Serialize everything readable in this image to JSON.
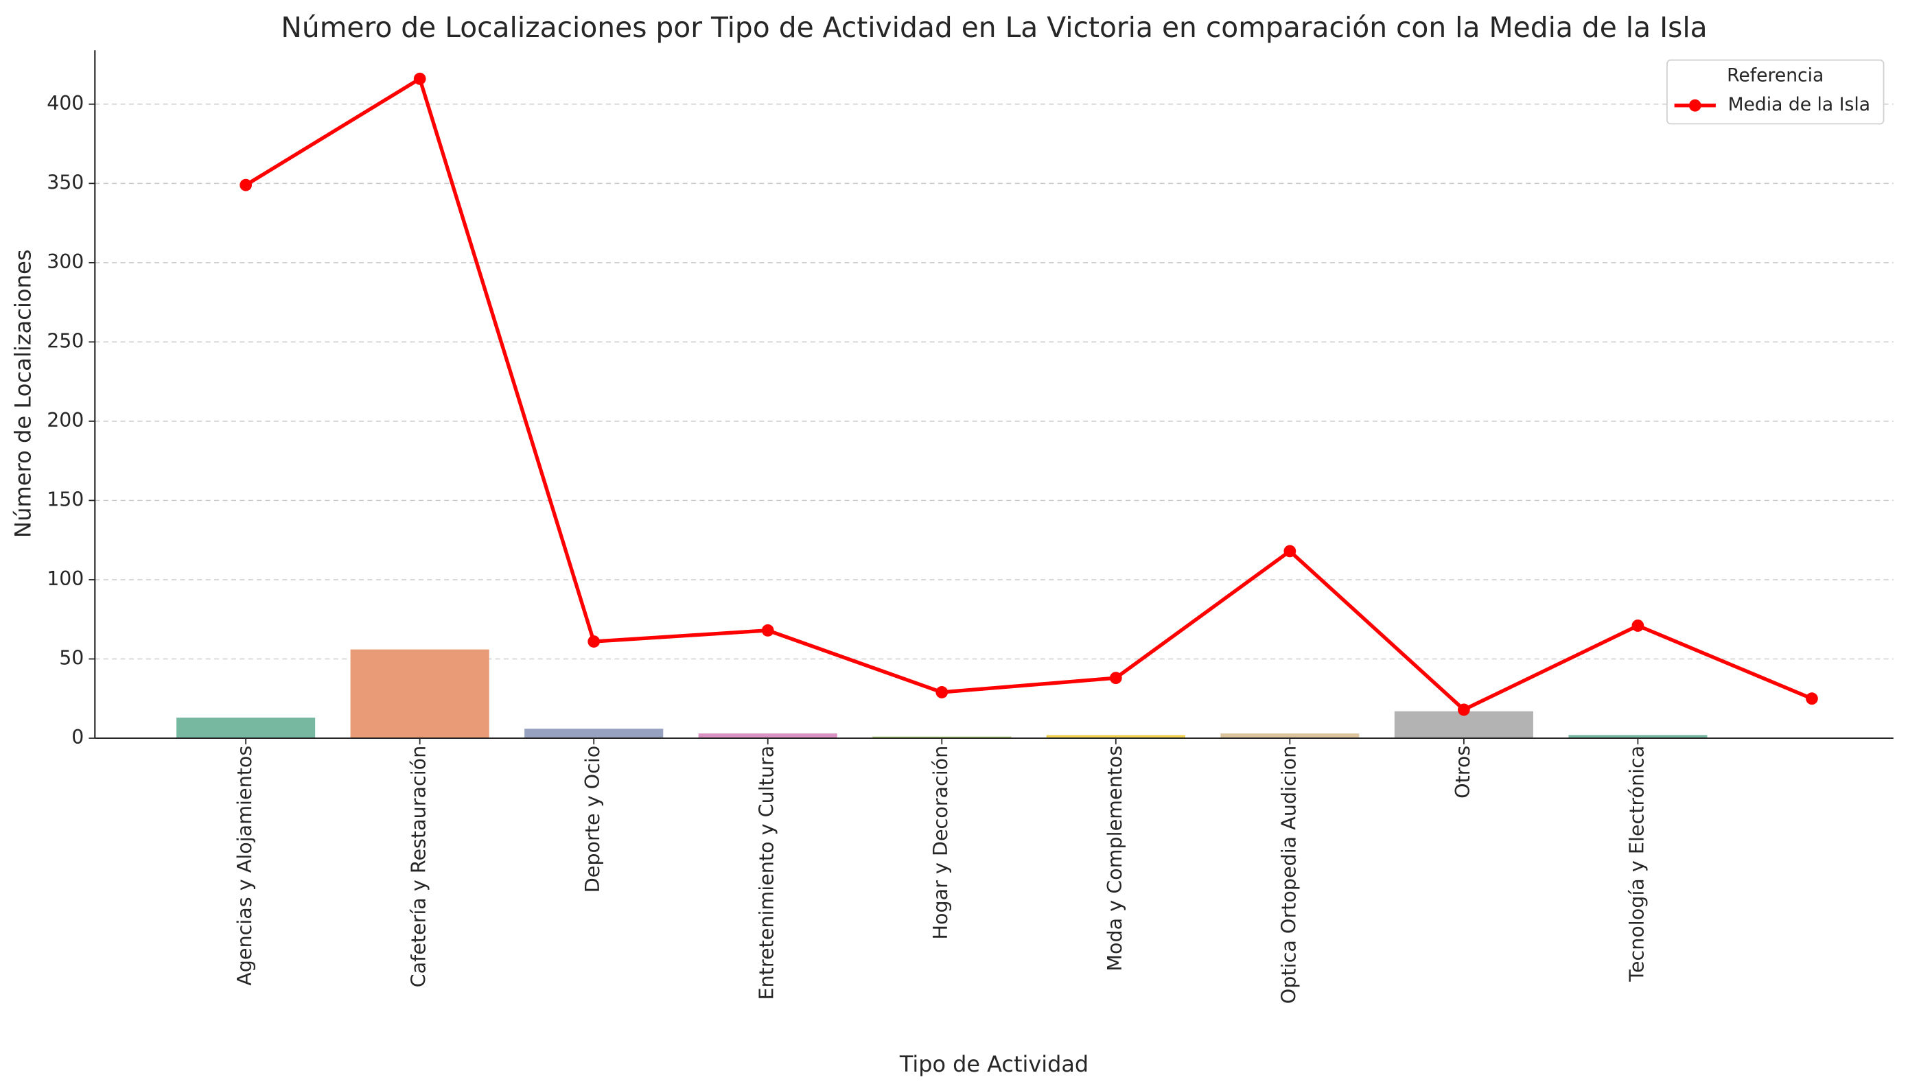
{
  "chart_data": {
    "type": "bar",
    "title": "Número de Localizaciones por Tipo de Actividad en La Victoria en comparación con la Media de la Isla",
    "x_label": "Tipo de Actividad",
    "y_label": "Número de Localizaciones",
    "categories": [
      "Agencias y Alojamientos",
      "Cafetería y Restauración",
      "Deporte y Ocio",
      "Entretenimiento y Cultura",
      "Hogar y Decoración",
      "Moda y Complementos",
      "Optica Ortopedia Audicion",
      "Otros",
      "Tecnología y Electrónica",
      null
    ],
    "values": [
      13,
      56,
      6,
      3,
      1,
      2,
      3,
      17,
      2,
      null
    ],
    "colors": [
      "#76b8a0",
      "#e99a77",
      "#97a2c0",
      "#d993c3",
      "#a8cf6a",
      "#f2d24f",
      "#dcc59e",
      "#b3b3b3",
      "#76b8a0",
      "#76b8a0"
    ],
    "series": [
      {
        "name": "Media de la Isla",
        "color": "#ff0000",
        "values": [
          349,
          416,
          61,
          68,
          29,
          38,
          118,
          18,
          71,
          25
        ]
      }
    ],
    "legend_title": "Referencia",
    "legend": "upper right",
    "ylim": [
      0,
      434
    ],
    "yticks": [
      0,
      50,
      100,
      150,
      200,
      250,
      300,
      350,
      400
    ],
    "grid": true
  }
}
